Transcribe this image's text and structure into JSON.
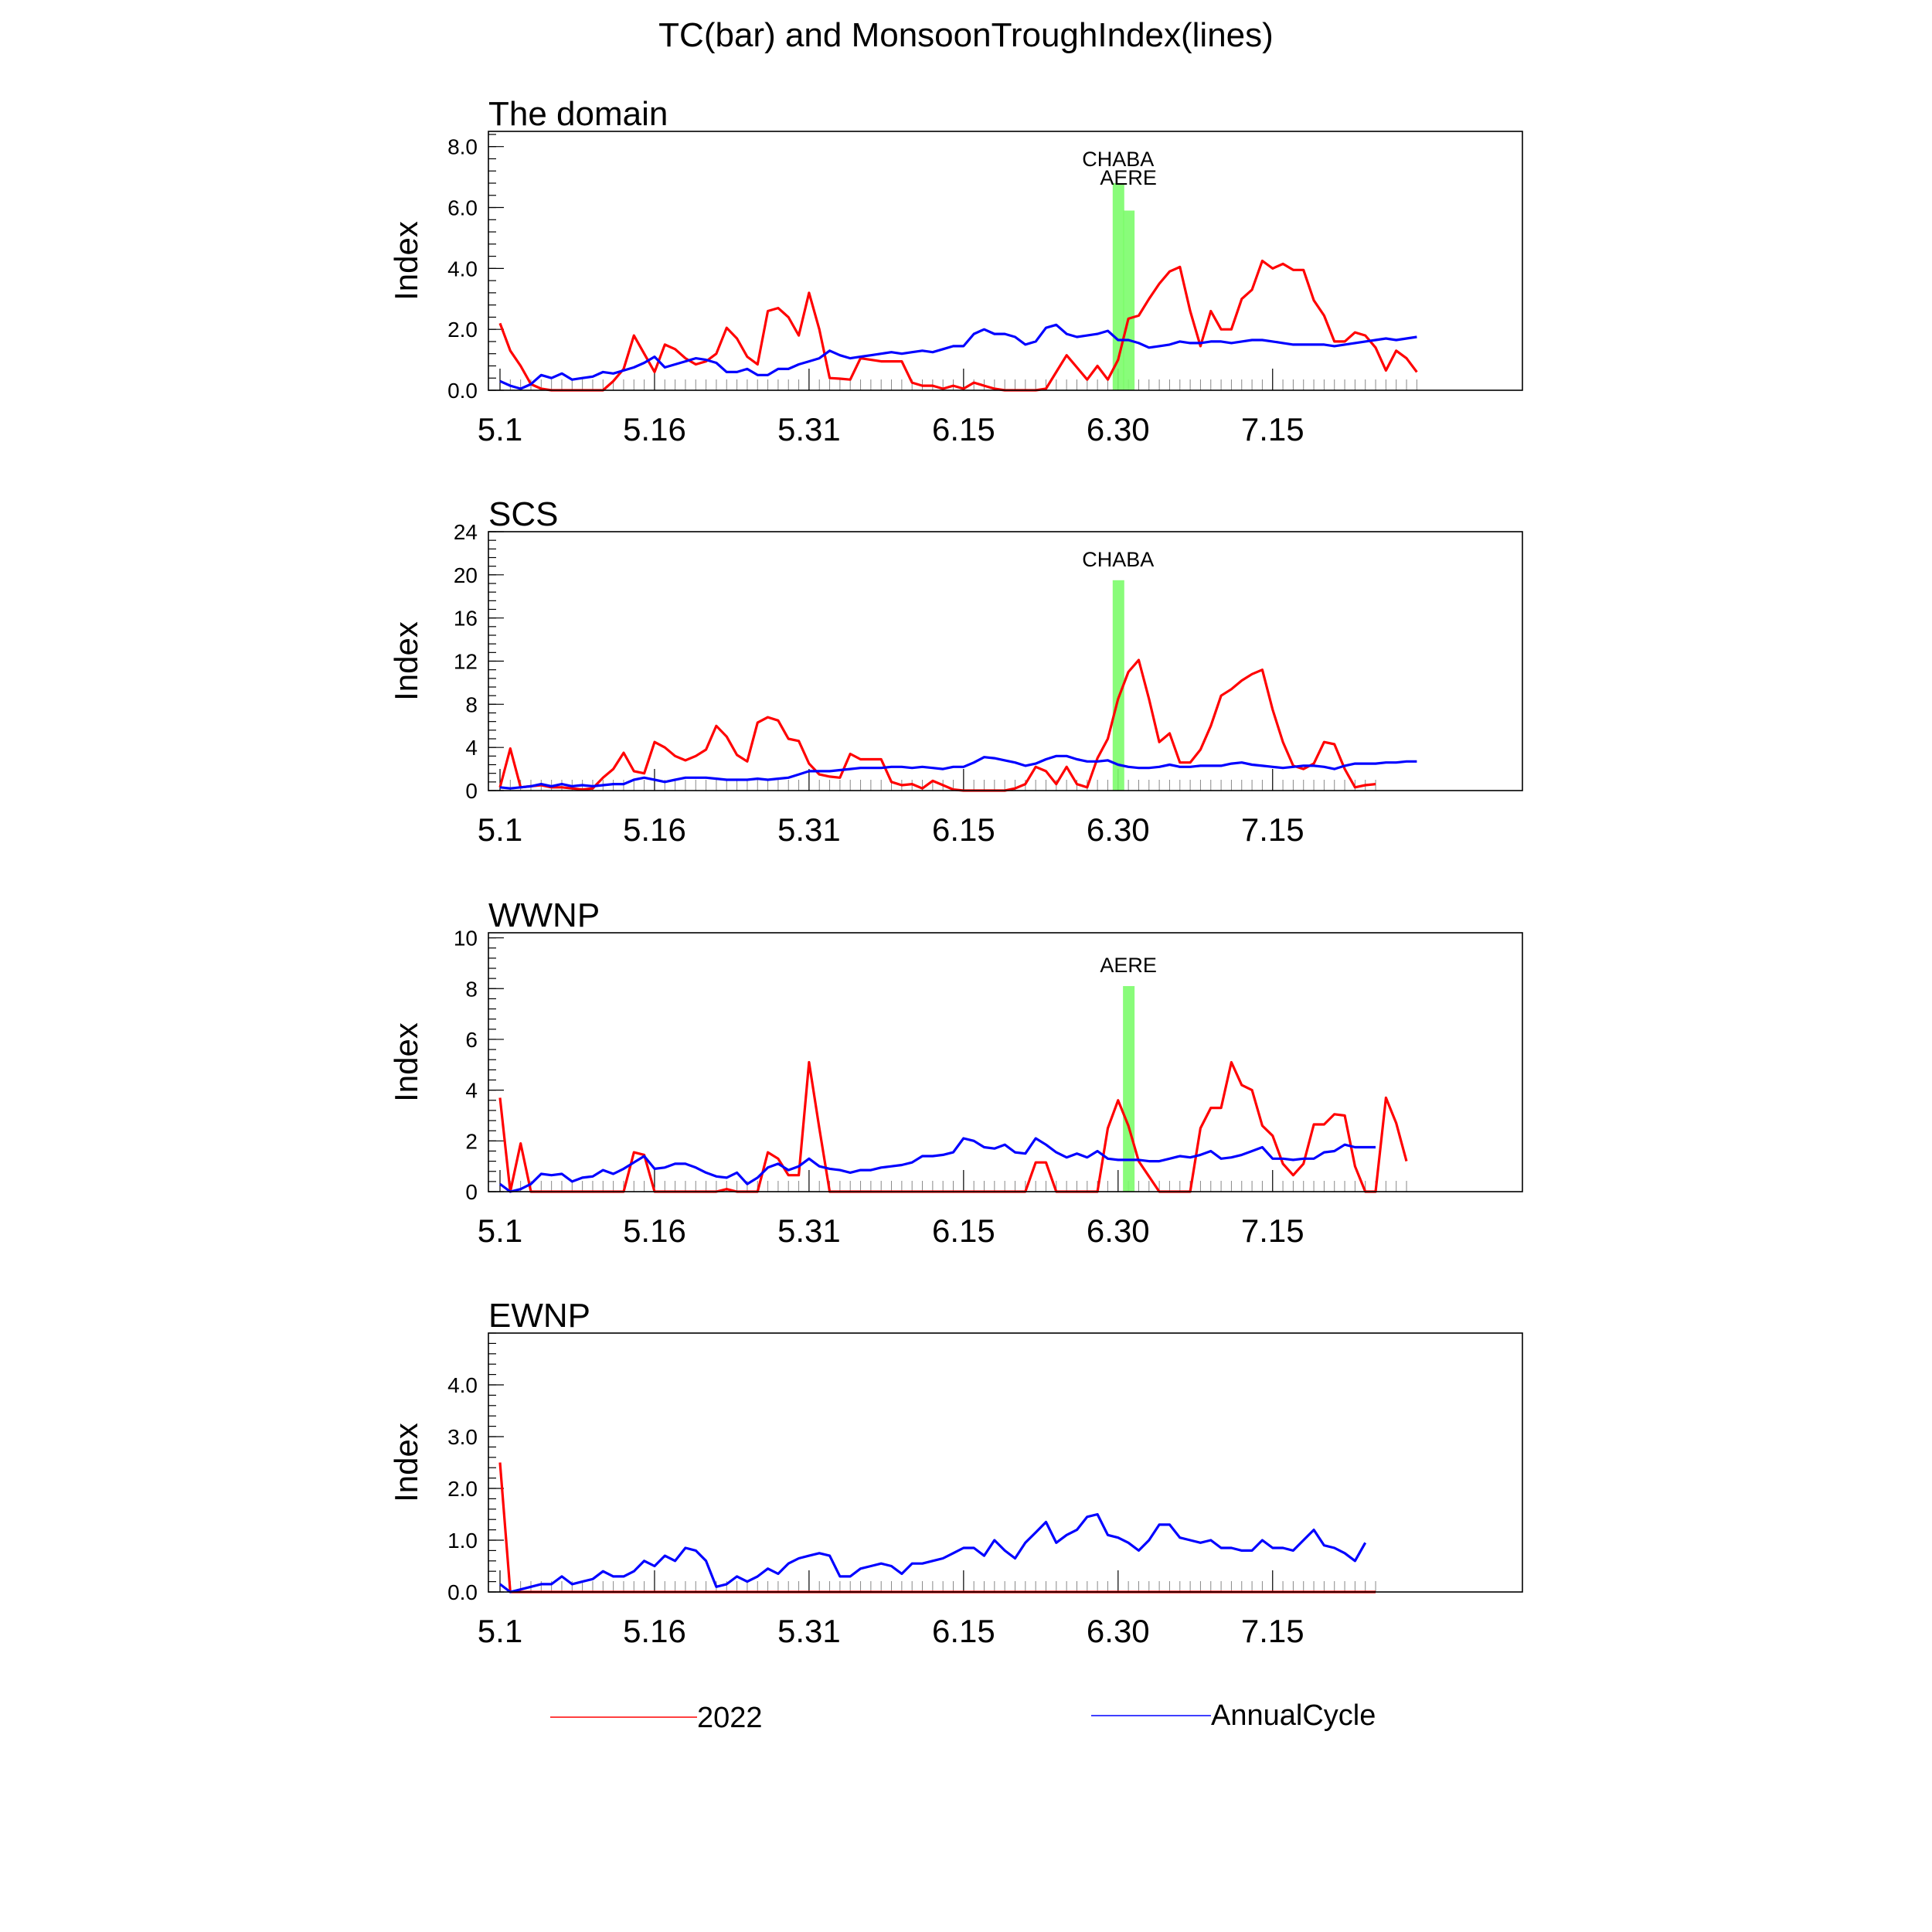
{
  "title": "TC(bar) and MonsoonTroughIndex(lines)",
  "legend": {
    "items": [
      {
        "label": "2022",
        "color": "#ff0000"
      },
      {
        "label": "AnnualCycle",
        "color": "#0000ff"
      }
    ],
    "placement": "bottom"
  },
  "colors": {
    "tc_bar": "#7cfc6c",
    "s2022": "#ff0000",
    "annual": "#0000ff"
  },
  "chart_data": [
    {
      "type": "line",
      "title": "The domain",
      "ylabel": "Index",
      "xlim": [
        0,
        100
      ],
      "ylim": [
        0,
        8.5
      ],
      "yticks": [
        0,
        2,
        4,
        6,
        8
      ],
      "ytick_labels": [
        "0.0",
        "2.0",
        "4.0",
        "6.0",
        "8.0"
      ],
      "x_labels": [
        "5.1",
        "5.16",
        "5.31",
        "6.15",
        "6.30",
        "7.15"
      ],
      "x_label_positions": [
        0,
        15,
        30,
        45,
        60,
        75
      ],
      "bars": [
        {
          "name": "CHABA",
          "x": 60,
          "value": 6.8
        },
        {
          "name": "AERE",
          "x": 61,
          "value": 5.9
        }
      ],
      "series": [
        {
          "name": "2022",
          "values": [
            2.2,
            1.3,
            0.8,
            0.2,
            0.05,
            0.0,
            0.0,
            0.0,
            0.0,
            0.0,
            0.0,
            0.3,
            0.7,
            1.8,
            1.2,
            0.6,
            1.5,
            1.35,
            1.05,
            0.85,
            0.95,
            1.2,
            2.05,
            1.7,
            1.1,
            0.85,
            2.6,
            2.7,
            2.4,
            1.8,
            3.2,
            2.0,
            0.4,
            0.38,
            0.35,
            1.05,
            1.0,
            0.95,
            0.95,
            0.95,
            0.25,
            0.15,
            0.15,
            0.05,
            0.15,
            0.05,
            0.25,
            0.15,
            0.05,
            0.0,
            0.0,
            0.0,
            0.0,
            0.05,
            0.6,
            1.15,
            0.75,
            0.35,
            0.8,
            0.35,
            1.0,
            2.35,
            2.45,
            3.0,
            3.5,
            3.9,
            4.05,
            2.6,
            1.45,
            2.6,
            2.0,
            2.0,
            3.0,
            3.3,
            4.25,
            4.0,
            4.15,
            3.95,
            3.95,
            2.95,
            2.45,
            1.6,
            1.6,
            1.9,
            1.8,
            1.4,
            0.65,
            1.3,
            1.05,
            0.6
          ]
        },
        {
          "name": "AnnualCycle",
          "values": [
            0.3,
            0.15,
            0.05,
            0.2,
            0.5,
            0.4,
            0.55,
            0.35,
            0.4,
            0.45,
            0.6,
            0.55,
            0.65,
            0.75,
            0.9,
            1.1,
            0.75,
            0.85,
            0.95,
            1.05,
            1.0,
            0.9,
            0.6,
            0.6,
            0.7,
            0.5,
            0.5,
            0.7,
            0.7,
            0.85,
            0.95,
            1.05,
            1.3,
            1.15,
            1.05,
            1.1,
            1.15,
            1.2,
            1.25,
            1.2,
            1.25,
            1.3,
            1.25,
            1.35,
            1.45,
            1.45,
            1.85,
            2.0,
            1.85,
            1.85,
            1.75,
            1.5,
            1.6,
            2.05,
            2.15,
            1.85,
            1.75,
            1.8,
            1.85,
            1.95,
            1.65,
            1.65,
            1.55,
            1.4,
            1.45,
            1.5,
            1.6,
            1.55,
            1.55,
            1.6,
            1.6,
            1.55,
            1.6,
            1.65,
            1.65,
            1.6,
            1.55,
            1.5,
            1.5,
            1.5,
            1.5,
            1.45,
            1.5,
            1.55,
            1.6,
            1.65,
            1.7,
            1.65,
            1.7,
            1.75
          ]
        }
      ]
    },
    {
      "type": "line",
      "title": "SCS",
      "ylabel": "Index",
      "xlim": [
        0,
        100
      ],
      "ylim": [
        0,
        24
      ],
      "yticks": [
        0,
        4,
        8,
        12,
        16,
        20,
        24
      ],
      "ytick_labels": [
        "0",
        "4",
        "8",
        "12",
        "16",
        "20",
        "24"
      ],
      "x_labels": [
        "5.1",
        "5.16",
        "5.31",
        "6.15",
        "6.30",
        "7.15"
      ],
      "x_label_positions": [
        0,
        15,
        30,
        45,
        60,
        75
      ],
      "bars": [
        {
          "name": "CHABA",
          "x": 60,
          "value": 19.5
        }
      ],
      "series": [
        {
          "name": "2022",
          "values": [
            0.3,
            3.9,
            0.3,
            0.4,
            0.5,
            0.3,
            0.3,
            0.2,
            0.1,
            0.2,
            1.2,
            2.0,
            3.5,
            1.8,
            1.6,
            4.5,
            4.0,
            3.2,
            2.8,
            3.2,
            3.8,
            6.0,
            5.0,
            3.3,
            2.7,
            6.3,
            6.8,
            6.5,
            4.8,
            4.6,
            2.5,
            1.5,
            1.3,
            1.2,
            3.4,
            2.9,
            2.9,
            2.9,
            0.8,
            0.5,
            0.6,
            0.2,
            0.9,
            0.5,
            0.1,
            0.0,
            0.0,
            0.0,
            0.0,
            0.0,
            0.2,
            0.6,
            2.2,
            1.8,
            0.6,
            2.2,
            0.6,
            0.3,
            3.0,
            4.8,
            8.5,
            11.0,
            12.1,
            8.5,
            4.5,
            5.3,
            2.6,
            2.6,
            3.8,
            6.0,
            8.8,
            9.4,
            10.2,
            10.8,
            11.2,
            7.5,
            4.5,
            2.3,
            2.0,
            2.5,
            4.5,
            4.3,
            2.0,
            0.3,
            0.5,
            0.6
          ]
        },
        {
          "name": "AnnualCycle",
          "values": [
            0.3,
            0.2,
            0.3,
            0.4,
            0.6,
            0.4,
            0.6,
            0.4,
            0.5,
            0.4,
            0.5,
            0.6,
            0.6,
            1.0,
            1.2,
            1.0,
            0.8,
            1.0,
            1.2,
            1.2,
            1.2,
            1.1,
            1.0,
            1.0,
            1.0,
            1.1,
            1.0,
            1.1,
            1.2,
            1.5,
            1.8,
            1.8,
            1.8,
            1.9,
            2.0,
            2.1,
            2.1,
            2.1,
            2.2,
            2.2,
            2.1,
            2.2,
            2.1,
            2.0,
            2.2,
            2.2,
            2.6,
            3.1,
            3.0,
            2.8,
            2.6,
            2.3,
            2.5,
            2.9,
            3.2,
            3.2,
            2.9,
            2.7,
            2.7,
            2.8,
            2.4,
            2.2,
            2.1,
            2.1,
            2.2,
            2.4,
            2.2,
            2.2,
            2.3,
            2.3,
            2.3,
            2.5,
            2.6,
            2.4,
            2.3,
            2.2,
            2.1,
            2.2,
            2.3,
            2.3,
            2.2,
            2.0,
            2.3,
            2.5,
            2.5,
            2.5,
            2.6,
            2.6,
            2.7,
            2.7
          ]
        }
      ]
    },
    {
      "type": "line",
      "title": "WWNP",
      "ylabel": "Index",
      "xlim": [
        0,
        100
      ],
      "ylim": [
        0,
        10.2
      ],
      "yticks": [
        0,
        2,
        4,
        6,
        8,
        10
      ],
      "ytick_labels": [
        "0",
        "2",
        "4",
        "6",
        "8",
        "10"
      ],
      "x_labels": [
        "5.1",
        "5.16",
        "5.31",
        "6.15",
        "6.30",
        "7.15"
      ],
      "x_label_positions": [
        0,
        15,
        30,
        45,
        60,
        75
      ],
      "bars": [
        {
          "name": "AERE",
          "x": 61,
          "value": 8.1
        }
      ],
      "series": [
        {
          "name": "2022",
          "values": [
            3.7,
            0.0,
            1.9,
            0.0,
            0.0,
            0.0,
            0.0,
            0.0,
            0.0,
            0.0,
            0.0,
            0.0,
            0.0,
            1.55,
            1.45,
            0.0,
            0.0,
            0.0,
            0.0,
            0.0,
            0.0,
            0.0,
            0.1,
            0.0,
            0.0,
            0.0,
            1.55,
            1.3,
            0.65,
            0.65,
            5.1,
            2.5,
            0.0,
            0.0,
            0.0,
            0.0,
            0.0,
            0.0,
            0.0,
            0.0,
            0.0,
            0.0,
            0.0,
            0.0,
            0.0,
            0.0,
            0.0,
            0.0,
            0.0,
            0.0,
            0.0,
            0.0,
            1.15,
            1.15,
            0.0,
            0.0,
            0.0,
            0.0,
            0.0,
            2.5,
            3.6,
            2.6,
            1.2,
            0.6,
            0.0,
            0.0,
            0.0,
            0.0,
            2.5,
            3.3,
            3.3,
            5.1,
            4.2,
            4.0,
            2.6,
            2.2,
            1.1,
            0.65,
            1.1,
            2.65,
            2.65,
            3.05,
            3.0,
            1.0,
            0.0,
            0.0,
            3.7,
            2.7,
            1.2
          ]
        },
        {
          "name": "AnnualCycle",
          "values": [
            0.3,
            0.0,
            0.1,
            0.3,
            0.7,
            0.65,
            0.7,
            0.4,
            0.55,
            0.6,
            0.85,
            0.7,
            0.9,
            1.15,
            1.4,
            0.9,
            0.95,
            1.1,
            1.1,
            0.95,
            0.75,
            0.6,
            0.55,
            0.75,
            0.3,
            0.55,
            0.95,
            1.1,
            0.85,
            1.0,
            1.3,
            1.0,
            0.9,
            0.85,
            0.75,
            0.85,
            0.85,
            0.95,
            1.0,
            1.05,
            1.15,
            1.4,
            1.4,
            1.45,
            1.55,
            2.1,
            2.0,
            1.75,
            1.7,
            1.85,
            1.55,
            1.5,
            2.1,
            1.85,
            1.55,
            1.35,
            1.5,
            1.35,
            1.6,
            1.3,
            1.25,
            1.25,
            1.25,
            1.2,
            1.2,
            1.3,
            1.4,
            1.35,
            1.45,
            1.6,
            1.3,
            1.35,
            1.45,
            1.6,
            1.75,
            1.3,
            1.3,
            1.25,
            1.3,
            1.3,
            1.55,
            1.6,
            1.85,
            1.75,
            1.75,
            1.75
          ]
        }
      ]
    },
    {
      "type": "line",
      "title": "EWNP",
      "ylabel": "Index",
      "xlim": [
        0,
        100
      ],
      "ylim": [
        0,
        5.0
      ],
      "yticks": [
        0,
        1,
        2,
        3,
        4
      ],
      "ytick_labels": [
        "0.0",
        "1.0",
        "2.0",
        "3.0",
        "4.0"
      ],
      "x_labels": [
        "5.1",
        "5.16",
        "5.31",
        "6.15",
        "6.30",
        "7.15"
      ],
      "x_label_positions": [
        0,
        15,
        30,
        45,
        60,
        75
      ],
      "bars": [],
      "series": [
        {
          "name": "2022",
          "values": [
            2.5,
            0.0,
            0.0,
            0.0,
            0.0,
            0.0,
            0.0,
            0.0,
            0.0,
            0.0,
            0.0,
            0.0,
            0.0,
            0.0,
            0.0,
            0.0,
            0.0,
            0.0,
            0.0,
            0.0,
            0.0,
            0.0,
            0.0,
            0.0,
            0.0,
            0.0,
            0.0,
            0.0,
            0.0,
            0.0,
            0.0,
            0.0,
            0.0,
            0.0,
            0.0,
            0.0,
            0.0,
            0.0,
            0.0,
            0.0,
            0.0,
            0.0,
            0.0,
            0.0,
            0.0,
            0.0,
            0.0,
            0.0,
            0.0,
            0.0,
            0.0,
            0.0,
            0.0,
            0.0,
            0.0,
            0.0,
            0.0,
            0.0,
            0.0,
            0.0,
            0.0,
            0.0,
            0.0,
            0.0,
            0.0,
            0.0,
            0.0,
            0.0,
            0.0,
            0.0,
            0.0,
            0.0,
            0.0,
            0.0,
            0.0,
            0.0,
            0.0,
            0.0,
            0.0,
            0.0,
            0.0,
            0.0,
            0.0,
            0.0,
            0.0,
            0.0
          ]
        },
        {
          "name": "AnnualCycle",
          "values": [
            0.15,
            0.0,
            0.05,
            0.1,
            0.15,
            0.15,
            0.3,
            0.15,
            0.2,
            0.25,
            0.4,
            0.3,
            0.3,
            0.4,
            0.6,
            0.5,
            0.7,
            0.6,
            0.85,
            0.8,
            0.6,
            0.1,
            0.15,
            0.3,
            0.2,
            0.3,
            0.45,
            0.35,
            0.55,
            0.65,
            0.7,
            0.75,
            0.7,
            0.3,
            0.3,
            0.45,
            0.5,
            0.55,
            0.5,
            0.35,
            0.55,
            0.55,
            0.6,
            0.65,
            0.75,
            0.85,
            0.85,
            0.7,
            1.0,
            0.8,
            0.65,
            0.95,
            1.15,
            1.35,
            0.95,
            1.1,
            1.2,
            1.45,
            1.5,
            1.1,
            1.05,
            0.95,
            0.8,
            1.0,
            1.3,
            1.3,
            1.05,
            1.0,
            0.95,
            1.0,
            0.85,
            0.85,
            0.8,
            0.8,
            1.0,
            0.85,
            0.85,
            0.8,
            1.0,
            1.2,
            0.9,
            0.85,
            0.75,
            0.6,
            0.95
          ]
        }
      ]
    }
  ]
}
